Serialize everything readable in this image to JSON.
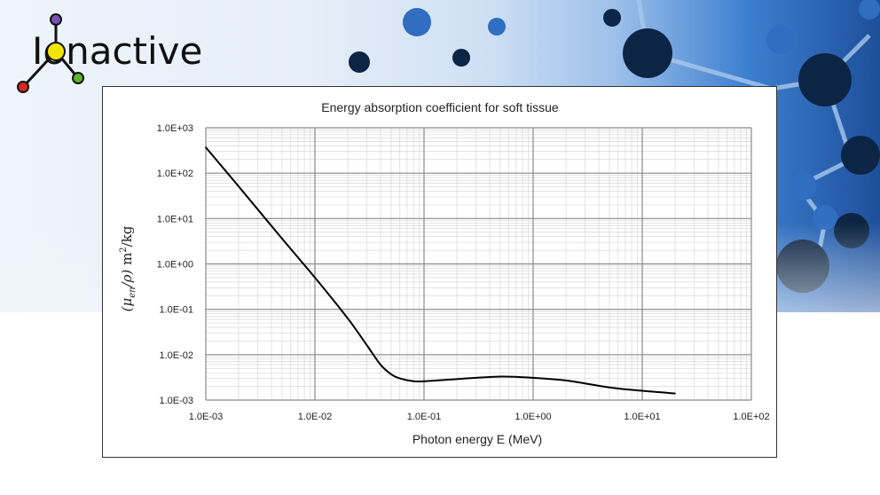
{
  "brand": "Ionactive",
  "brand_colors": {
    "purple": "#7a4fb5",
    "yellow": "#f2e600",
    "red": "#d8281e",
    "green": "#5bb531"
  },
  "chart_data": {
    "type": "line",
    "title": "Energy absorption coefficient for soft tissue",
    "xlabel": "Photon energy E (MeV)",
    "ylabel": "(μ_en/ρ) m²/kg",
    "ylabel_parts": {
      "open": "(μ",
      "sub": "en",
      "mid": "/ρ)",
      "unit": " m",
      "sup": "2",
      "tail": "/kg"
    },
    "x_scale": "log",
    "y_scale": "log",
    "xlim": [
      0.001,
      100
    ],
    "ylim": [
      0.001,
      1000
    ],
    "x_tick_labels": [
      "1.0E-03",
      "1.0E-02",
      "1.0E-01",
      "1.0E+00",
      "1.0E+01",
      "1.0E+02"
    ],
    "y_tick_labels": [
      "1.0E+03",
      "1.0E+02",
      "1.0E+01",
      "1.0E+00",
      "1.0E-01",
      "1.0E-02",
      "1.0E-03"
    ],
    "grid": true,
    "minor_grid": true,
    "legend": "none",
    "line_color": "#000000",
    "series": [
      {
        "x": [
          0.001,
          0.002,
          0.005,
          0.01,
          0.02,
          0.03,
          0.04,
          0.05,
          0.06,
          0.08,
          0.1,
          0.2,
          0.5,
          1,
          2,
          5,
          10,
          20
        ],
        "y": [
          370,
          51,
          3.6,
          0.5,
          0.063,
          0.016,
          0.006,
          0.0037,
          0.003,
          0.0026,
          0.0026,
          0.0029,
          0.0033,
          0.0031,
          0.0027,
          0.0019,
          0.0016,
          0.0014
        ]
      }
    ]
  }
}
